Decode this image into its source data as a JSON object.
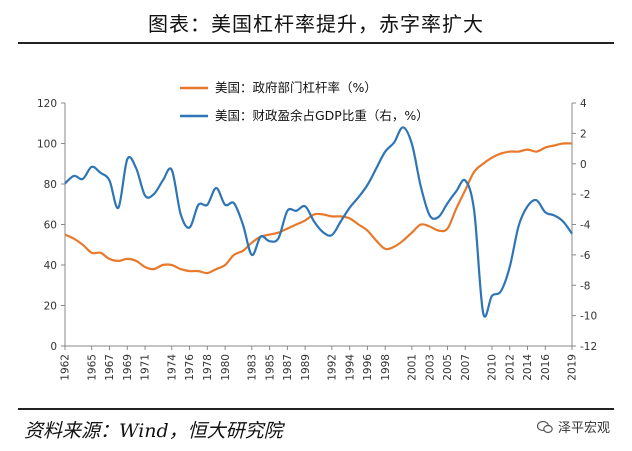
{
  "header": {
    "title": "图表：美国杠杆率提升，赤字率扩大"
  },
  "footer": {
    "source": "资料来源：Wind，恒大研究院",
    "brand": "泽平宏观"
  },
  "chart_data": {
    "type": "line",
    "x": [
      1962,
      1963,
      1964,
      1965,
      1966,
      1967,
      1968,
      1969,
      1970,
      1971,
      1972,
      1973,
      1974,
      1975,
      1976,
      1977,
      1978,
      1979,
      1980,
      1981,
      1982,
      1983,
      1984,
      1985,
      1986,
      1987,
      1988,
      1989,
      1990,
      1991,
      1992,
      1993,
      1994,
      1995,
      1996,
      1997,
      1998,
      1999,
      2000,
      2001,
      2002,
      2003,
      2004,
      2005,
      2006,
      2007,
      2008,
      2009,
      2010,
      2011,
      2012,
      2013,
      2014,
      2015,
      2016,
      2017,
      2018,
      2019
    ],
    "x_tick_labels": [
      "1962",
      "1965",
      "1967",
      "1969",
      "1971",
      "1974",
      "1976",
      "1978",
      "1980",
      "1983",
      "1985",
      "1987",
      "1989",
      "1992",
      "1994",
      "1996",
      "1998",
      "2001",
      "2003",
      "2005",
      "2007",
      "2010",
      "2012",
      "2014",
      "2016",
      "2019"
    ],
    "series": [
      {
        "name": "美国：政府部门杠杆率（%）",
        "axis": "left",
        "color": "#E8792B",
        "values": [
          55,
          53,
          50,
          46,
          46,
          43,
          42,
          43,
          42,
          39,
          38,
          40,
          40,
          38,
          37,
          37,
          36,
          38,
          40,
          45,
          47,
          51,
          54,
          55,
          56,
          58,
          60,
          62,
          65,
          65,
          64,
          64,
          63,
          60,
          57,
          52,
          48,
          49,
          52,
          56,
          60,
          59,
          57,
          58,
          68,
          77,
          86,
          90,
          93,
          95,
          96,
          96,
          97,
          96,
          98,
          99,
          100,
          100
        ]
      },
      {
        "name": "美国：财政盈余占GDP比重（右，%）",
        "axis": "right",
        "color": "#2E75B6",
        "values": [
          -1.3,
          -0.8,
          -1.0,
          -0.2,
          -0.6,
          -1.1,
          -2.9,
          0.3,
          -0.3,
          -2.1,
          -2.0,
          -1.1,
          -0.4,
          -3.3,
          -4.2,
          -2.7,
          -2.7,
          -1.6,
          -2.7,
          -2.6,
          -4.0,
          -6.0,
          -4.8,
          -5.1,
          -4.9,
          -3.1,
          -3.1,
          -2.8,
          -3.8,
          -4.5,
          -4.7,
          -3.8,
          -2.9,
          -2.2,
          -1.4,
          -0.3,
          0.8,
          1.4,
          2.4,
          1.3,
          -1.5,
          -3.4,
          -3.5,
          -2.6,
          -1.8,
          -1.1,
          -3.1,
          -9.8,
          -8.7,
          -8.4,
          -6.8,
          -4.1,
          -2.8,
          -2.4,
          -3.2,
          -3.4,
          -3.8,
          -4.6
        ]
      }
    ],
    "y_left": {
      "min": 0,
      "max": 120,
      "step": 20,
      "ticks": [
        "0",
        "20",
        "40",
        "60",
        "80",
        "100",
        "120"
      ]
    },
    "y_right": {
      "min": -12,
      "max": 4,
      "step": 2,
      "ticks": [
        "-12",
        "-10",
        "-8",
        "-6",
        "-4",
        "-2",
        "0",
        "2",
        "4"
      ]
    },
    "grid": false,
    "legend_position": "top-left"
  }
}
